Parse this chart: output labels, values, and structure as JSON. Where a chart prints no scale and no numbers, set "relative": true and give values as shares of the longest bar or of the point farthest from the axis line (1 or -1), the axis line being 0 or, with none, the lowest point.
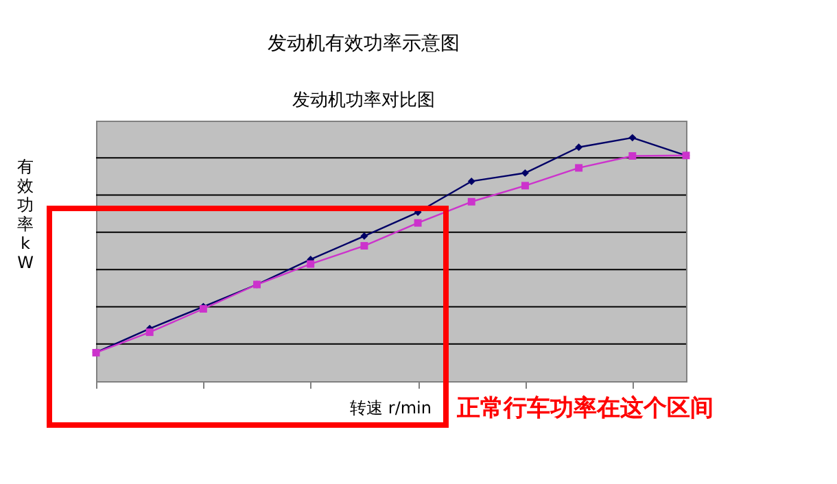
{
  "chart_data": {
    "type": "line",
    "title": "发动机有效功率示意图",
    "subtitle": "发动机功率对比图",
    "xlabel": "转速 r/min",
    "ylabel": "有效功率 kW",
    "relative": true,
    "grid": "y",
    "line_style": "solid",
    "categories": [
      null,
      null,
      null,
      null,
      null,
      null,
      null,
      null,
      null,
      null,
      null,
      null
    ],
    "series": [
      {
        "color": "#000066",
        "marker": "diamond",
        "values": [
          0.118,
          0.216,
          0.306,
          0.397,
          0.5,
          0.596,
          0.694,
          0.821,
          0.855,
          0.961,
          1,
          0.927
        ]
      },
      {
        "color": "#cc33cc",
        "marker": "square",
        "values": [
          0.117,
          0.201,
          0.297,
          0.397,
          0.481,
          0.556,
          0.65,
          0.737,
          0.803,
          0.876,
          0.925,
          0.927
        ]
      }
    ],
    "annotations": [
      "正常行车功率在这个区间"
    ]
  }
}
